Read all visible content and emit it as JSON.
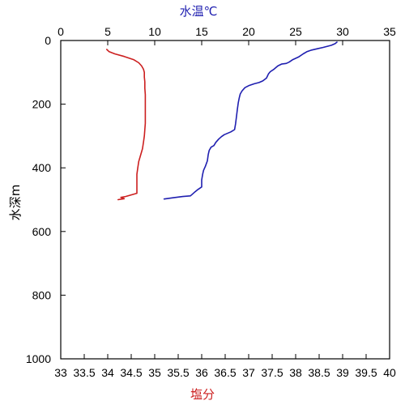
{
  "chart_data": {
    "type": "line",
    "title": "",
    "axes": {
      "y": {
        "label": "水深m",
        "range": [
          0,
          1000
        ],
        "inverted": true,
        "ticks": [
          0,
          200,
          400,
          600,
          800,
          1000
        ],
        "tick_labels": [
          "0",
          "200",
          "400",
          "600",
          "800",
          "1000"
        ]
      },
      "x_top": {
        "label": "水温℃",
        "label_color": "#1f1fb0",
        "range": [
          0,
          35
        ],
        "ticks": [
          0,
          5,
          10,
          15,
          20,
          25,
          30,
          35
        ],
        "tick_labels": [
          "0",
          "5",
          "10",
          "15",
          "20",
          "25",
          "30",
          "35"
        ]
      },
      "x_bottom": {
        "label": "塩分",
        "label_color": "#cc1f1f",
        "range": [
          33,
          40
        ],
        "ticks": [
          33,
          33.5,
          34,
          34.5,
          35,
          35.5,
          36,
          36.5,
          37,
          37.5,
          38,
          38.5,
          39,
          39.5,
          40
        ],
        "tick_labels": [
          "33",
          "33.5",
          "34",
          "34.5",
          "35",
          "35.5",
          "36",
          "36.5",
          "37",
          "37.5",
          "38",
          "38.5",
          "39",
          "39.5",
          "40"
        ]
      }
    },
    "grid": false,
    "series": [
      {
        "axis": "x_top",
        "color": "#1f1fb0",
        "points": [
          [
            29.4,
            5
          ],
          [
            29.2,
            10
          ],
          [
            28.8,
            15
          ],
          [
            28.4,
            18
          ],
          [
            27.9,
            22
          ],
          [
            27.3,
            26
          ],
          [
            26.7,
            30
          ],
          [
            26.2,
            35
          ],
          [
            25.8,
            42
          ],
          [
            25.3,
            52
          ],
          [
            24.7,
            60
          ],
          [
            24.3,
            68
          ],
          [
            24.0,
            72
          ],
          [
            23.5,
            74
          ],
          [
            23.1,
            80
          ],
          [
            22.7,
            90
          ],
          [
            22.3,
            98
          ],
          [
            22.1,
            105
          ],
          [
            21.9,
            118
          ],
          [
            21.5,
            127
          ],
          [
            21.1,
            132
          ],
          [
            20.6,
            136
          ],
          [
            20.0,
            142
          ],
          [
            19.6,
            148
          ],
          [
            19.3,
            158
          ],
          [
            19.1,
            168
          ],
          [
            19.0,
            180
          ],
          [
            18.9,
            195
          ],
          [
            18.8,
            215
          ],
          [
            18.7,
            240
          ],
          [
            18.6,
            262
          ],
          [
            18.5,
            280
          ],
          [
            18.1,
            287
          ],
          [
            17.7,
            292
          ],
          [
            17.4,
            296
          ],
          [
            17.1,
            302
          ],
          [
            16.8,
            310
          ],
          [
            16.5,
            320
          ],
          [
            16.3,
            330
          ],
          [
            16.0,
            335
          ],
          [
            15.8,
            345
          ],
          [
            15.7,
            358
          ],
          [
            15.6,
            378
          ],
          [
            15.4,
            395
          ],
          [
            15.2,
            408
          ],
          [
            15.1,
            420
          ],
          [
            15.0,
            438
          ],
          [
            15.0,
            460
          ],
          [
            14.6,
            468
          ],
          [
            14.3,
            475
          ],
          [
            14.0,
            483
          ],
          [
            13.8,
            488
          ],
          [
            13.0,
            490
          ],
          [
            12.0,
            494
          ],
          [
            11.0,
            498
          ]
        ]
      },
      {
        "axis": "x_bottom",
        "color": "#cc1f1f",
        "points": [
          [
            33.98,
            28
          ],
          [
            34.03,
            35
          ],
          [
            34.15,
            42
          ],
          [
            34.35,
            50
          ],
          [
            34.55,
            60
          ],
          [
            34.66,
            70
          ],
          [
            34.72,
            80
          ],
          [
            34.76,
            90
          ],
          [
            34.78,
            100
          ],
          [
            34.78,
            115
          ],
          [
            34.79,
            130
          ],
          [
            34.79,
            150
          ],
          [
            34.8,
            170
          ],
          [
            34.8,
            200
          ],
          [
            34.8,
            230
          ],
          [
            34.8,
            260
          ],
          [
            34.79,
            280
          ],
          [
            34.78,
            300
          ],
          [
            34.76,
            320
          ],
          [
            34.74,
            340
          ],
          [
            34.7,
            360
          ],
          [
            34.66,
            380
          ],
          [
            34.64,
            400
          ],
          [
            34.62,
            420
          ],
          [
            34.62,
            440
          ],
          [
            34.62,
            460
          ],
          [
            34.62,
            480
          ],
          [
            34.5,
            485
          ],
          [
            34.38,
            490
          ],
          [
            34.28,
            493
          ],
          [
            34.35,
            497
          ],
          [
            34.22,
            500
          ]
        ]
      }
    ]
  }
}
